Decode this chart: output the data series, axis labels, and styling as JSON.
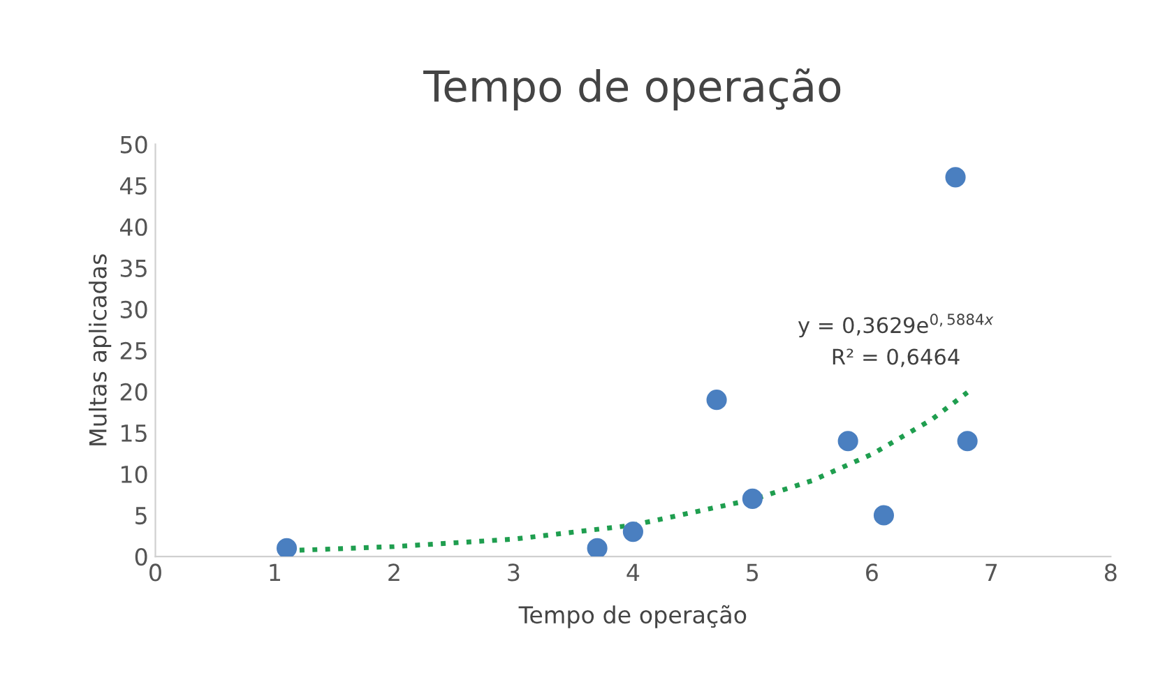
{
  "chart_data": {
    "type": "scatter",
    "title": "Tempo de operação",
    "xlabel": "Tempo de operação",
    "ylabel": "Multas aplicadas",
    "xlim": [
      0,
      8
    ],
    "xticks": [
      0,
      1,
      2,
      3,
      4,
      5,
      6,
      7,
      8
    ],
    "ylim": [
      0,
      50
    ],
    "yticks": [
      0,
      5,
      10,
      15,
      20,
      25,
      30,
      35,
      40,
      45,
      50
    ],
    "grid": false,
    "marker": "circle",
    "series": [
      {
        "color": "#4a7fc0",
        "x": [
          1.1,
          3.7,
          4.0,
          4.7,
          5.0,
          5.8,
          6.1,
          6.7,
          6.8
        ],
        "values": [
          1,
          1,
          3,
          19,
          7,
          14,
          5,
          46,
          14
        ]
      },
      {
        "type": "line",
        "color": "#1f9e4f",
        "line_style": "dotted",
        "marker": "none",
        "x": [
          1.1,
          2,
          3,
          4,
          5,
          5.5,
          6,
          6.5,
          6.8
        ],
        "values": [
          0.7,
          1.2,
          2.1,
          3.8,
          6.9,
          9.2,
          12.4,
          16.6,
          19.9
        ]
      }
    ],
    "annotations": [
      "y = 0,3629e$^{0,5884x}$",
      "R² = 0,6464"
    ]
  }
}
